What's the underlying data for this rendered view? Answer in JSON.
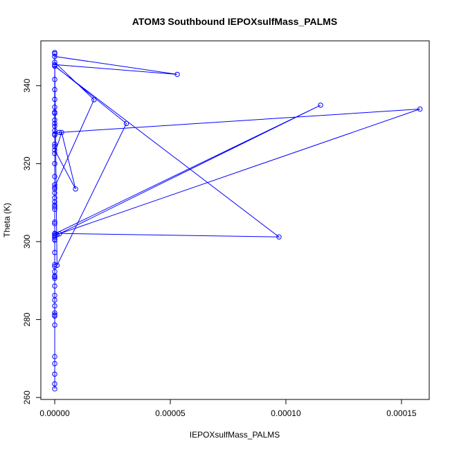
{
  "chart_data": {
    "type": "line",
    "title": "ATOM3 Southbound IEPOXsulfMass_PALMS",
    "xlabel": "IEPOXsulfMass_PALMS",
    "ylabel": "Theta (K)",
    "xlim": [
      -6e-06,
      0.000162
    ],
    "ylim": [
      259.5,
      351.5
    ],
    "xticks": [
      0,
      5e-05,
      0.0001,
      0.00015
    ],
    "xtick_labels": [
      "0.00000",
      "0.00005",
      "0.00010",
      "0.00015"
    ],
    "yticks": [
      260,
      280,
      300,
      320,
      340
    ],
    "ytick_labels": [
      "260",
      "280",
      "300",
      "320",
      "340"
    ],
    "grid": false,
    "legend": "none",
    "color": "#0000ff",
    "series": [
      {
        "x": [
          0,
          0,
          0,
          0,
          0,
          0,
          0,
          0,
          0,
          0,
          0,
          0,
          0,
          0,
          0,
          0,
          0,
          0,
          0,
          0,
          0,
          0,
          0,
          0,
          0,
          0,
          0,
          0,
          0,
          3e-06,
          9e-06,
          0,
          0,
          0,
          0,
          0,
          0,
          0,
          0,
          0,
          0,
          9.7e-05,
          0,
          0,
          0.000115,
          2e-06,
          1e-06,
          0.000158,
          2e-06,
          0,
          0,
          0,
          0,
          0,
          0,
          0,
          3.1e-05,
          1e-06,
          0,
          5.3e-05,
          0,
          0,
          0,
          0,
          1.7e-05,
          0,
          0,
          0,
          0,
          0,
          0,
          0,
          0,
          0,
          0,
          0
        ],
        "y": [
          262.2,
          268.7,
          278.6,
          281.2,
          281.7,
          283.5,
          285.0,
          286.2,
          288.6,
          290.6,
          291.2,
          292.3,
          293.6,
          294.1,
          297.2,
          300.4,
          301.4,
          302.0,
          304.6,
          308.3,
          308.9,
          310.2,
          311.2,
          312.5,
          313.5,
          314.6,
          316.7,
          320.0,
          322.6,
          328.0,
          313.5,
          323.5,
          324.4,
          325.0,
          327.3,
          328.5,
          330.3,
          331.2,
          333.2,
          334.5,
          345.0,
          301.2,
          302.1,
          302.0,
          335.0,
          302.0,
          301.8,
          334.0,
          328.0,
          327.6,
          329.6,
          332.9,
          336.5,
          339.0,
          341.6,
          345.1,
          330.3,
          293.9,
          345.4,
          342.9,
          347.5,
          348.2,
          348.5,
          346.0,
          336.4,
          314.0,
          309.4,
          305.0,
          301.6,
          301.0,
          300.5,
          291.0,
          280.9,
          270.5,
          266.0,
          263.5
        ]
      }
    ]
  }
}
